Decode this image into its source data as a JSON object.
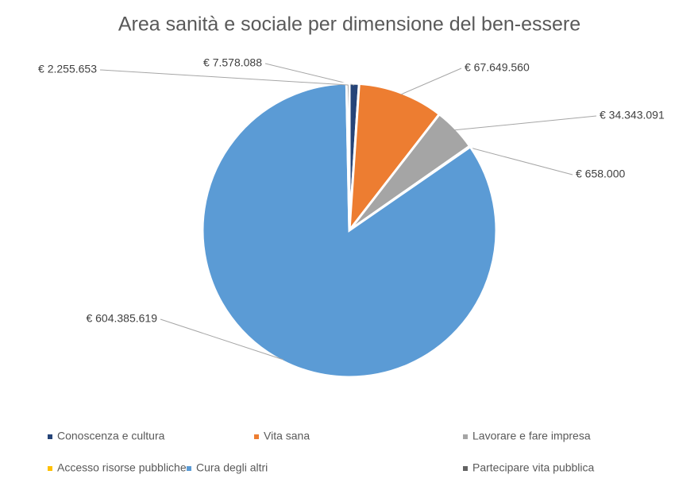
{
  "chart_data": {
    "type": "pie",
    "title": "Area sanità e sociale per dimensione del ben-essere",
    "categories": [
      "Conoscenza e cultura",
      "Vita sana",
      "Lavorare e fare impresa",
      "Accesso risorse pubbliche",
      "Cura degli altri",
      "Partecipare vita pubblica"
    ],
    "values": [
      7578088,
      67649560,
      34343091,
      658000,
      604385619,
      2255653
    ],
    "value_labels": [
      "€ 7.578.088",
      "€ 67.649.560",
      "€ 34.343.091",
      "€ 658.000",
      "€ 604.385.619",
      "€ 2.255.653"
    ],
    "colors": [
      "#264478",
      "#ED7D31",
      "#A5A5A5",
      "#FFC000",
      "#5B9BD5",
      "#636363"
    ],
    "legend": "bottom"
  }
}
